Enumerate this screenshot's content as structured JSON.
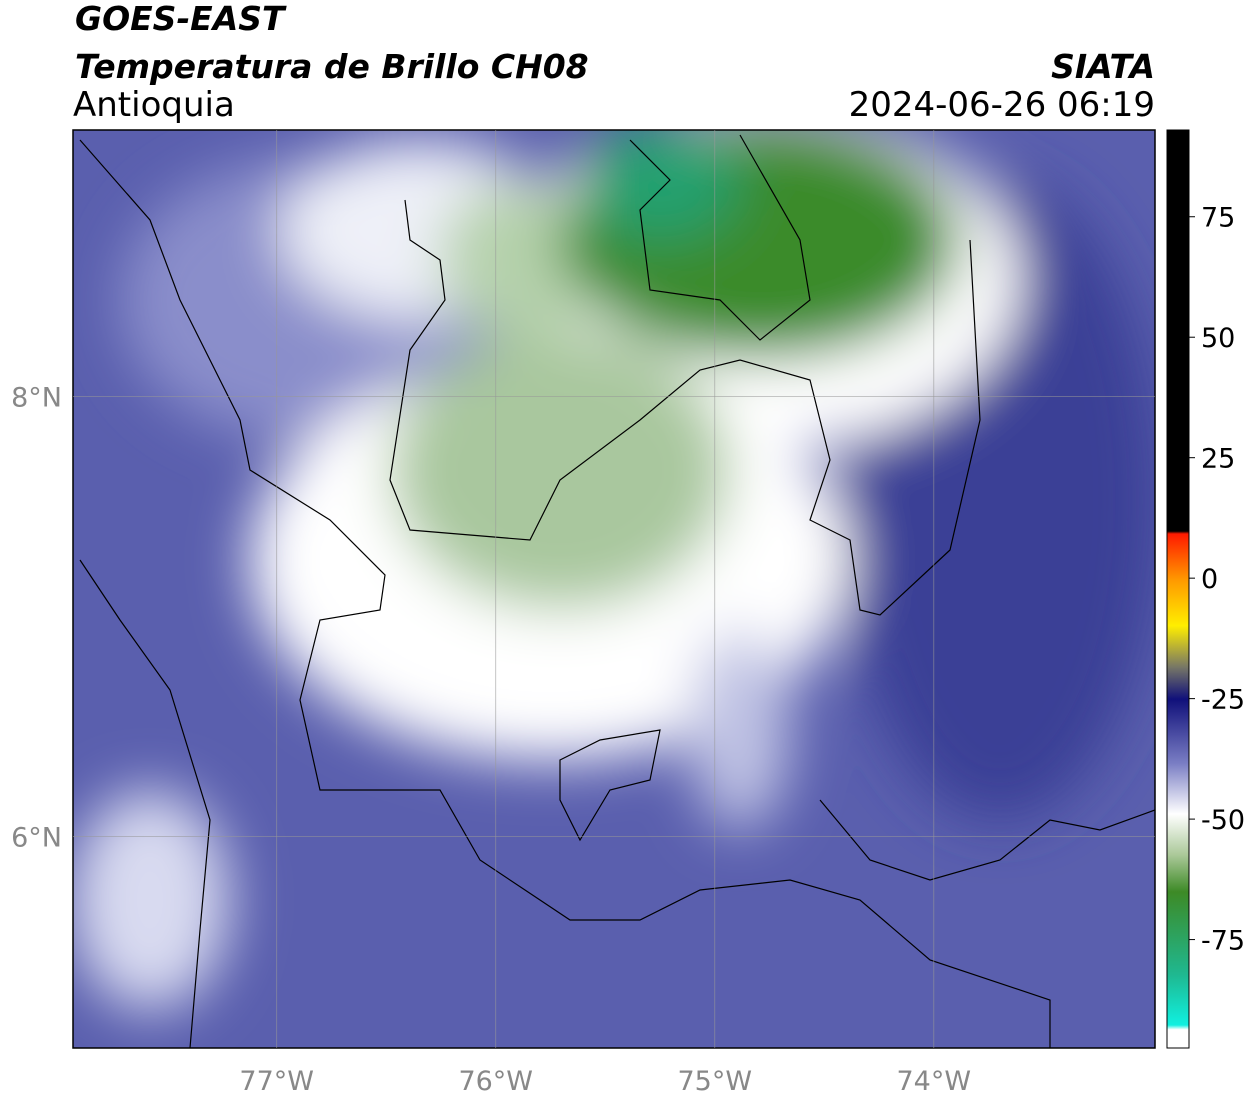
{
  "header": {
    "satellite": "GOES-EAST",
    "product": "Temperatura de Brillo CH08",
    "region": "Antioquia",
    "source": "SIATA",
    "datetime": "2024-06-26 06:19"
  },
  "map": {
    "lonlim": [
      -77.93,
      -72.99
    ],
    "latlim": [
      5.04,
      9.21
    ],
    "lonticks": [
      {
        "value": -77,
        "label": "77°W"
      },
      {
        "value": -76,
        "label": "76°W"
      },
      {
        "value": -75,
        "label": "75°W"
      },
      {
        "value": -74,
        "label": "74°W"
      }
    ],
    "latticks": [
      {
        "value": 8,
        "label": "8°N"
      },
      {
        "value": 6,
        "label": "6°N"
      }
    ]
  },
  "colorbar": {
    "lim": [
      -97.5,
      93
    ],
    "ticks": [
      75,
      50,
      25,
      0,
      -25,
      -50,
      -75
    ]
  }
}
